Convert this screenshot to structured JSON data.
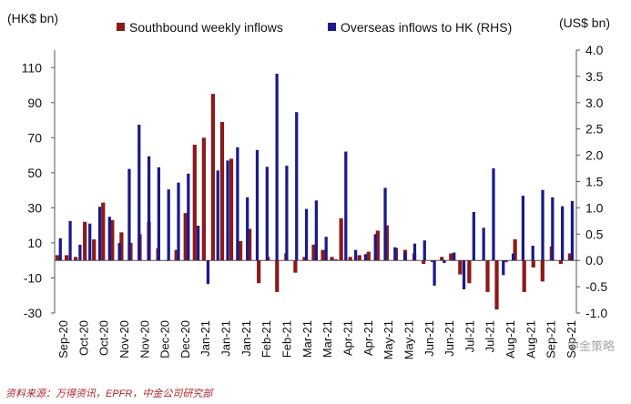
{
  "chart_data": {
    "type": "bar",
    "left_axis_label": "(HK$ bn)",
    "right_axis_label": "(US$ bn)",
    "ylim_left": [
      -30,
      120
    ],
    "ylim_right": [
      -1.0,
      4.0
    ],
    "left_ticks": [
      "110",
      "90",
      "70",
      "50",
      "30",
      "10",
      "-10",
      "-30"
    ],
    "right_ticks": [
      "4.0",
      "3.5",
      "3.0",
      "2.5",
      "2.0",
      "1.5",
      "1.0",
      "0.5",
      "0.0",
      "-0.5",
      "-1.0"
    ],
    "x_tick_labels": [
      "Sep-20",
      "Oct-20",
      "Oct-20",
      "Nov-20",
      "Nov-20",
      "Dec-20",
      "Dec-20",
      "Jan-21",
      "Jan-21",
      "Jan-21",
      "Feb-21",
      "Feb-21",
      "Mar-21",
      "Mar-21",
      "Apr-21",
      "Apr-21",
      "May-21",
      "May-21",
      "Jun-21",
      "Jun-21",
      "Jul-21",
      "Jul-21",
      "Aug-21",
      "Aug-21",
      "Sep-21",
      "Sep-21"
    ],
    "series": [
      {
        "name": "Southbound weekly inflows",
        "color": "#8b1a1a",
        "axis": "left",
        "values": [
          3,
          3,
          2,
          22,
          12,
          33,
          23,
          16,
          10,
          15,
          22,
          7,
          0,
          6,
          27,
          66,
          70,
          95,
          79,
          58,
          11,
          18,
          -13,
          2,
          -18,
          4,
          -7,
          2,
          9,
          6,
          2,
          24,
          2,
          3,
          5,
          17,
          20,
          7,
          6,
          4,
          -2,
          -1,
          2,
          4,
          -8,
          -13,
          0,
          -18,
          -28,
          -1,
          12,
          -18,
          -4,
          -12,
          8,
          -2,
          4
        ]
      },
      {
        "name": "Overseas inflows to HK (RHS)",
        "color": "#1a1a8c",
        "axis": "right",
        "values": [
          0.42,
          0.75,
          0.3,
          0.7,
          1.02,
          0.83,
          0.33,
          1.74,
          2.58,
          1.98,
          1.77,
          1.35,
          1.48,
          1.65,
          0.66,
          -0.45,
          1.71,
          1.9,
          2.15,
          1.2,
          2.1,
          1.78,
          3.55,
          1.8,
          2.82,
          0.98,
          1.14,
          0.45,
          0.02,
          2.07,
          0.2,
          0.12,
          0.5,
          1.38,
          0.25,
          0.15,
          0.32,
          0.38,
          -0.48,
          -0.05,
          0.15,
          -0.55,
          0.92,
          0.62,
          1.75,
          -0.28,
          0.13,
          1.23,
          0.28,
          1.34,
          1.2,
          1.03,
          1.13
        ]
      }
    ]
  },
  "source_text": "资料来源：万得资讯，EPFR，中金公司研究部",
  "watermark_text": "中金策略"
}
